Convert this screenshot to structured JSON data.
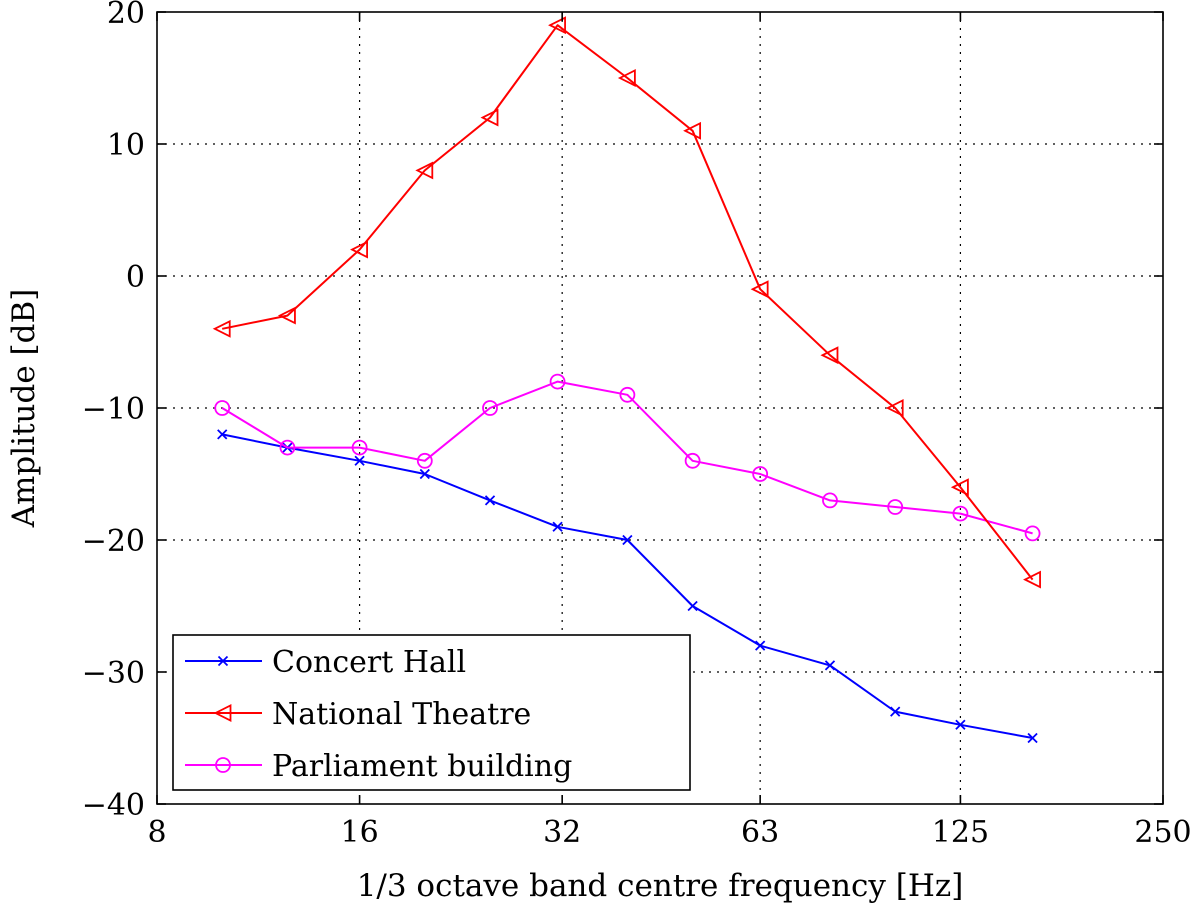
{
  "chart_data": {
    "type": "line",
    "title": "",
    "xlabel": "1/3 octave band centre frequency [Hz]",
    "ylabel": "Amplitude [dB]",
    "x_scale": "log2",
    "xlim": [
      8,
      250
    ],
    "ylim": [
      -40,
      20
    ],
    "x_ticks": [
      8,
      16,
      32,
      63,
      125,
      250
    ],
    "x_tick_labels": [
      "8",
      "16",
      "32",
      "63",
      "125",
      "250"
    ],
    "y_ticks": [
      -40,
      -30,
      -20,
      -10,
      0,
      10,
      20
    ],
    "y_tick_labels": [
      "−40",
      "−30",
      "−20",
      "−10",
      "0",
      "10",
      "20"
    ],
    "grid": true,
    "legend_position": "bottom-left",
    "x": [
      10,
      12.5,
      16,
      20,
      25,
      31.5,
      40,
      50,
      63,
      80,
      100,
      125,
      160
    ],
    "series": [
      {
        "name": "Concert Hall",
        "color": "#0000ff",
        "marker": "x",
        "values": [
          -12,
          -13,
          -14,
          -15,
          -17,
          -19,
          -20,
          -25,
          -28,
          -29.5,
          -33,
          -34,
          -35
        ]
      },
      {
        "name": "National Theatre",
        "color": "#ff0000",
        "marker": "triangle-left",
        "values": [
          -4,
          -3,
          2,
          8,
          12,
          19,
          15,
          11,
          -1,
          -6,
          -10,
          -16,
          -23
        ]
      },
      {
        "name": "Parliament building",
        "color": "#ff00ff",
        "marker": "circle",
        "values": [
          -10,
          -13,
          -13,
          -14,
          -10,
          -8,
          -9,
          -14,
          -15,
          -17,
          -17.5,
          -18,
          -19.5
        ]
      }
    ]
  }
}
